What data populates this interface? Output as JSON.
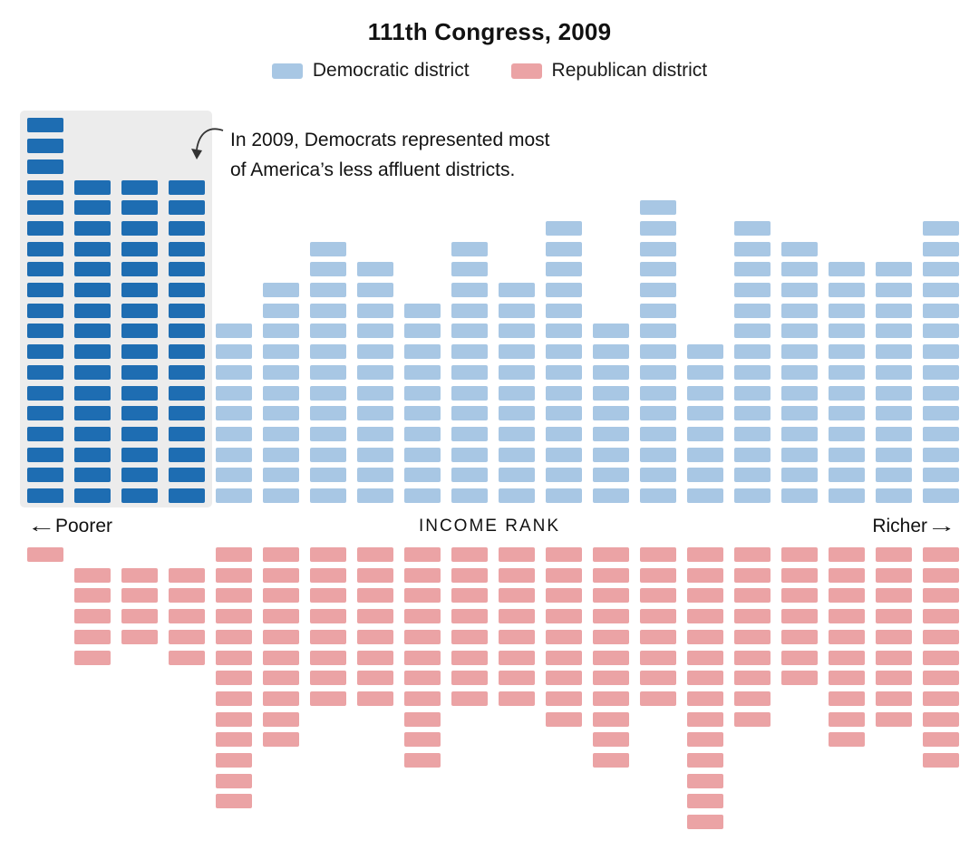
{
  "page_title": "111th Congress, 2009",
  "legend": {
    "items": [
      {
        "label": "Democratic district",
        "color": "#a8c7e4"
      },
      {
        "label": "Republican district",
        "color": "#eba3a5"
      }
    ]
  },
  "annotation": {
    "line1": "In 2009, Democrats represented most",
    "line2": "of America’s less affluent districts."
  },
  "axis": {
    "left_arrow": "←",
    "left_label": "Poorer",
    "center_label": "INCOME RANK",
    "right_label": "Richer",
    "right_arrow": "→"
  },
  "colors": {
    "dem": "#a8c7e4",
    "dem_highlight": "#1e6db2",
    "rep": "#eba3a5",
    "highlight_box": "#ececec",
    "text": "#121212",
    "arrow_stroke": "#333333",
    "background": "#ffffff"
  },
  "chart_data": {
    "type": "bar",
    "subtype": "diverging unit columns (1 square = 1 U.S. House district)",
    "title": "111th Congress, 2009",
    "xlabel": "INCOME RANK",
    "x_direction": {
      "left": "Poorer",
      "right": "Richer"
    },
    "n_columns": 20,
    "categories": [
      1,
      2,
      3,
      4,
      5,
      6,
      7,
      8,
      9,
      10,
      11,
      12,
      13,
      14,
      15,
      16,
      17,
      18,
      19,
      20
    ],
    "series": [
      {
        "name": "Democratic district",
        "direction": "up",
        "color": "#a8c7e4",
        "values": [
          19,
          16,
          16,
          16,
          9,
          11,
          13,
          12,
          10,
          13,
          11,
          14,
          9,
          15,
          8,
          14,
          13,
          12,
          12,
          14
        ]
      },
      {
        "name": "Republican district",
        "direction": "down",
        "color": "#eba3a5",
        "values": [
          1,
          5,
          4,
          5,
          13,
          10,
          8,
          8,
          11,
          8,
          8,
          9,
          11,
          8,
          14,
          9,
          7,
          10,
          9,
          11
        ]
      }
    ],
    "rep_start_row_offset": [
      0,
      1,
      1,
      1,
      0,
      0,
      0,
      0,
      0,
      0,
      0,
      0,
      0,
      0,
      0,
      0,
      0,
      0,
      0,
      0
    ],
    "highlighted_columns": [
      0,
      1,
      2,
      3
    ],
    "highlight_color": "#1e6db2",
    "legend_position": "top",
    "grid": false
  }
}
